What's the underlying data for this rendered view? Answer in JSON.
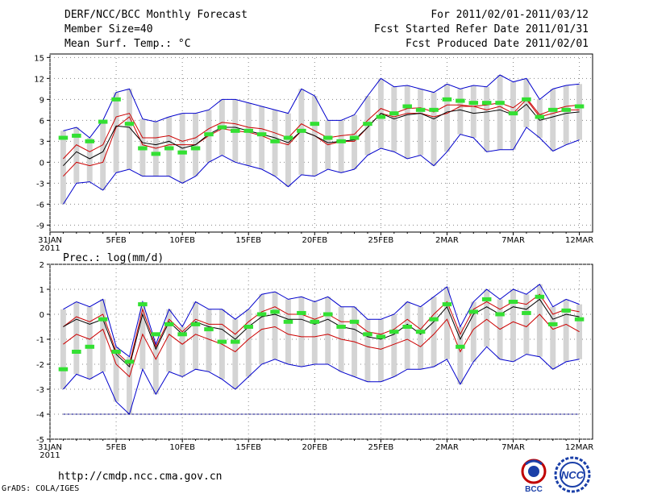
{
  "header": {
    "title": "DERF/NCC/BCC Monthly Forecast",
    "member_size": "Member Size=40",
    "variable": "Mean Surf. Temp.: °C",
    "period": "For 2011/02/01-2011/03/12",
    "started": "Fcst Started Refer Date 2011/01/31",
    "produced": "Fcst Produced Date 2011/02/01"
  },
  "footer": {
    "url": "http://cmdp.ncc.cma.gov.cn",
    "credit": "GrADS: COLA/IGES",
    "logo_bcc": "BCC",
    "logo_ncc": "NCC"
  },
  "colors": {
    "box": "#d4d4d4",
    "max_min": "#0000cc",
    "quartile": "#cc0000",
    "median": "#000000",
    "obs": "#33e033",
    "dashed": "#000080"
  },
  "chart_data": [
    {
      "type": "line",
      "title": "Mean Surf. Temp.: °C",
      "x_tick_labels": [
        "31JAN",
        "5FEB",
        "10FEB",
        "15FEB",
        "20FEB",
        "25FEB",
        "2MAR",
        "7MAR",
        "12MAR"
      ],
      "x_tick_days": [
        0,
        5,
        10,
        15,
        20,
        25,
        30,
        35,
        40
      ],
      "x_year_label": "2011",
      "ylim": [
        -10,
        15.5
      ],
      "y_ticks": [
        -9,
        -6,
        -3,
        0,
        3,
        6,
        9,
        12,
        15
      ],
      "x": [
        1,
        2,
        3,
        4,
        5,
        6,
        7,
        8,
        9,
        10,
        11,
        12,
        13,
        14,
        15,
        16,
        17,
        18,
        19,
        20,
        21,
        22,
        23,
        24,
        25,
        26,
        27,
        28,
        29,
        30,
        31,
        32,
        33,
        34,
        35,
        36,
        37,
        38,
        39,
        40
      ],
      "series": [
        {
          "name": "max",
          "values": [
            -6,
            -3,
            -2.8,
            -4,
            -1.5,
            -1,
            -2,
            -2,
            -2,
            -3,
            -2,
            0,
            1,
            0,
            -0.5,
            -1,
            -2,
            -3.5,
            -1.8,
            -2,
            -1,
            -1.5,
            -1,
            1,
            2,
            1.5,
            0.5,
            1,
            -0.5,
            1.5,
            4,
            3.5,
            1.5,
            1.8,
            1.8,
            5,
            3.5,
            1.6,
            2.5,
            3.2
          ]
        },
        {
          "name": "q1",
          "values": [
            -2,
            0,
            -0.5,
            0,
            5,
            6.5,
            2.5,
            2,
            2.5,
            2.5,
            2.5,
            3.8,
            4.8,
            4.5,
            4.3,
            3.8,
            3,
            2.5,
            4.5,
            3.8,
            2.5,
            3,
            3,
            5,
            7,
            6.5,
            7,
            7,
            6.5,
            7,
            8,
            8,
            7.5,
            8,
            7,
            9,
            6.5,
            7,
            7.5,
            7.5
          ]
        },
        {
          "name": "median",
          "values": [
            -0.5,
            1.5,
            0.5,
            1.5,
            5.2,
            5,
            2.8,
            2.5,
            3,
            2,
            2.5,
            4,
            5,
            5,
            4.5,
            4,
            3.5,
            2.8,
            4.5,
            3.8,
            2.8,
            3,
            3.2,
            5,
            7,
            6.2,
            6.8,
            7,
            6.2,
            7.2,
            7.5,
            7,
            7.2,
            7.5,
            6.8,
            8.3,
            6,
            6.5,
            7,
            7.2
          ]
        },
        {
          "name": "q3",
          "values": [
            0.5,
            2.5,
            1.5,
            2.5,
            6.5,
            7,
            3.5,
            3.5,
            3.8,
            3,
            3.5,
            4.8,
            5.7,
            5.5,
            5,
            4.8,
            4.2,
            3.5,
            5.5,
            4.5,
            3.5,
            3.8,
            4,
            6,
            7.7,
            7,
            7.7,
            7.8,
            7.2,
            8.2,
            8.2,
            8,
            8.2,
            8.5,
            7.8,
            9.2,
            6.8,
            7.5,
            8,
            8.2
          ]
        },
        {
          "name": "min",
          "values": [
            4.5,
            5,
            3.5,
            6,
            10,
            10.5,
            6.2,
            5.8,
            6.5,
            7,
            7,
            7.5,
            9,
            9,
            8.5,
            8,
            7.5,
            7,
            10.5,
            9.5,
            6,
            6,
            6.8,
            9.5,
            12,
            10.8,
            11,
            10.5,
            10,
            11.2,
            10.5,
            11,
            10.8,
            12.5,
            11.5,
            12,
            9,
            10.5,
            11,
            11.2
          ]
        },
        {
          "name": "observed",
          "values": [
            3.5,
            3.8,
            3,
            5.8,
            9,
            5.5,
            2,
            1.2,
            2,
            1.4,
            2,
            4,
            5,
            4.5,
            4.5,
            4,
            3,
            3.5,
            4.5,
            5.5,
            3.5,
            3,
            3.5,
            5.5,
            6.5,
            7,
            8,
            7.5,
            7.5,
            9,
            8.8,
            8.5,
            8.5,
            8.5,
            7,
            9,
            6.5,
            7.5,
            7.5,
            8
          ]
        }
      ]
    },
    {
      "type": "line",
      "title": "Prec.: log(mm/d)",
      "x_tick_labels": [
        "31JAN",
        "5FEB",
        "10FEB",
        "15FEB",
        "20FEB",
        "25FEB",
        "2MAR",
        "7MAR",
        "12MAR"
      ],
      "x_tick_days": [
        0,
        5,
        10,
        15,
        20,
        25,
        30,
        35,
        40
      ],
      "x_year_label": "2011",
      "ylim": [
        -5,
        2
      ],
      "y_ticks": [
        -5,
        -4,
        -3,
        -2,
        -1,
        0,
        1,
        2
      ],
      "x": [
        1,
        2,
        3,
        4,
        5,
        6,
        7,
        8,
        9,
        10,
        11,
        12,
        13,
        14,
        15,
        16,
        17,
        18,
        19,
        20,
        21,
        22,
        23,
        24,
        25,
        26,
        27,
        28,
        29,
        30,
        31,
        32,
        33,
        34,
        35,
        36,
        37,
        38,
        39,
        40
      ],
      "series": [
        {
          "name": "max",
          "values": [
            0.2,
            0.5,
            0.3,
            0.6,
            -1.3,
            -1.7,
            0.5,
            -1.2,
            0.2,
            -0.5,
            0.5,
            0.2,
            0.2,
            -0.2,
            0.2,
            0.8,
            0.9,
            0.6,
            0.7,
            0.5,
            0.7,
            0.3,
            0.3,
            -0.2,
            -0.2,
            0,
            0.5,
            0.3,
            0.7,
            1.1,
            -0.5,
            0.5,
            1,
            0.6,
            1,
            0.8,
            1.2,
            0.3,
            0.6,
            0.4
          ]
        },
        {
          "name": "q3",
          "values": [
            -0.5,
            -0.1,
            -0.3,
            0,
            -1.5,
            -2,
            0.2,
            -1.3,
            -0.2,
            -0.7,
            -0.2,
            -0.4,
            -0.4,
            -0.8,
            -0.3,
            0.1,
            0.3,
            0,
            0,
            -0.2,
            0,
            -0.3,
            -0.3,
            -0.7,
            -0.8,
            -0.6,
            -0.2,
            -0.6,
            0,
            0.5,
            -0.8,
            0.2,
            0.5,
            0.2,
            0.5,
            0.4,
            0.8,
            0,
            0.2,
            0.1
          ]
        },
        {
          "name": "median",
          "values": [
            -0.5,
            -0.2,
            -0.4,
            -0.2,
            -1.6,
            -2.1,
            0,
            -1.4,
            -0.3,
            -0.8,
            -0.3,
            -0.5,
            -0.6,
            -1,
            -0.5,
            -0.1,
            0,
            -0.2,
            -0.2,
            -0.4,
            -0.2,
            -0.5,
            -0.6,
            -0.9,
            -1,
            -0.8,
            -0.4,
            -0.8,
            -0.3,
            0.3,
            -1,
            0,
            0.3,
            0,
            0.3,
            0.2,
            0.6,
            -0.2,
            0,
            -0.1
          ]
        },
        {
          "name": "q1",
          "values": [
            -1.2,
            -0.8,
            -1,
            -0.6,
            -2,
            -2.5,
            -0.8,
            -1.8,
            -0.8,
            -1.2,
            -0.8,
            -1,
            -1.2,
            -1.5,
            -1,
            -0.6,
            -0.5,
            -0.8,
            -0.9,
            -0.9,
            -0.8,
            -1,
            -1.1,
            -1.3,
            -1.4,
            -1.2,
            -1,
            -1.3,
            -0.8,
            -0.2,
            -1.5,
            -0.6,
            -0.2,
            -0.6,
            -0.3,
            -0.5,
            0,
            -0.6,
            -0.4,
            -0.7
          ]
        },
        {
          "name": "min",
          "values": [
            -3,
            -2.4,
            -2.6,
            -2.3,
            -3.5,
            -4,
            -2.2,
            -3.2,
            -2.3,
            -2.5,
            -2.2,
            -2.3,
            -2.6,
            -3,
            -2.5,
            -2,
            -1.8,
            -2,
            -2.1,
            -2,
            -2,
            -2.3,
            -2.5,
            -2.7,
            -2.7,
            -2.5,
            -2.2,
            -2.2,
            -2.1,
            -1.8,
            -2.8,
            -1.9,
            -1.3,
            -1.8,
            -1.9,
            -1.6,
            -1.7,
            -2.2,
            -1.9,
            -1.8
          ]
        },
        {
          "name": "observed",
          "values": [
            -2.2,
            -1.5,
            -1.3,
            -0.2,
            -1.5,
            -1.9,
            0.4,
            -0.8,
            -0.4,
            -0.8,
            -0.4,
            -0.6,
            -1.1,
            -1.1,
            -0.5,
            0,
            0.1,
            -0.3,
            0.05,
            -0.3,
            0,
            -0.5,
            -0.3,
            -0.8,
            -0.9,
            -0.7,
            -0.5,
            -0.7,
            -0.2,
            0.4,
            -1.3,
            0.1,
            0.6,
            0,
            0.5,
            0.05,
            0.7,
            -0.4,
            0.15,
            -0.2
          ]
        },
        {
          "name": "lower_bound",
          "values": [
            -4,
            -4,
            -4,
            -4,
            -4,
            -4,
            -4,
            -4,
            -4,
            -4,
            -4,
            -4,
            -4,
            -4,
            -4,
            -4,
            -4,
            -4,
            -4,
            -4,
            -4,
            -4,
            -4,
            -4,
            -4,
            -4,
            -4,
            -4,
            -4,
            -4,
            -4,
            -4,
            -4,
            -4,
            -4,
            -4,
            -4,
            -4,
            -4,
            -4
          ]
        }
      ]
    }
  ]
}
